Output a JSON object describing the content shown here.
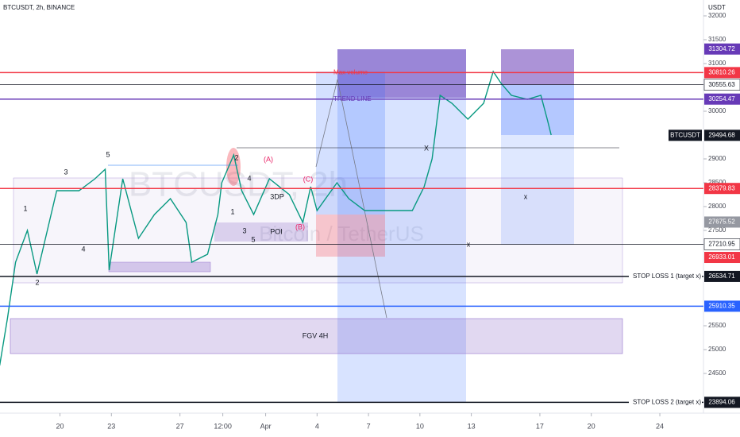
{
  "header": {
    "symbol": "BTCUSDT, 2h, BINANCE",
    "currency": "USDT"
  },
  "watermark": {
    "title": "BTCUSDT, 2h",
    "subtitle": "Bitcoin / TetherUS"
  },
  "chart_data": {
    "type": "line",
    "color": "#089981",
    "x": [
      16.48,
      16.94,
      17.41,
      18.1,
      18.66,
      19.26,
      19.81,
      21.11,
      22.04,
      22.64,
      22.87,
      23.66,
      24.58,
      25.51,
      26.44,
      27.36,
      27.69,
      28.61,
      29.21,
      29.44,
      30.14,
      30.6,
      31.3,
      32.22,
      33.38,
      34.17,
      34.63,
      35.0,
      36.16,
      36.85,
      37.78,
      39.17,
      40.56,
      41.25,
      41.71,
      42.18,
      42.87,
      43.8,
      44.72,
      45.28,
      45.74,
      46.34,
      47.27,
      48.06,
      48.43,
      48.66
    ],
    "values": [
      24667,
      25667,
      26833,
      27500,
      26583,
      27500,
      28333,
      28333,
      28583,
      28783,
      26667,
      28583,
      27333,
      27833,
      28167,
      27667,
      26833,
      27000,
      27833,
      28500,
      29083,
      28333,
      27833,
      28583,
      28250,
      27667,
      28417,
      27917,
      28500,
      28167,
      27917,
      27917,
      27917,
      28417,
      29000,
      30333,
      30167,
      29833,
      30167,
      30833,
      30583,
      30333,
      30250,
      30333,
      29833,
      29500
    ],
    "xlim": [
      16.5,
      57.5
    ],
    "ylim": [
      23417,
      32333
    ],
    "yticks": [
      32000,
      31500,
      31000,
      30000,
      29000,
      28500,
      28000,
      27500,
      25500,
      25000,
      24500
    ],
    "xticks": [
      20,
      23,
      27,
      {
        "value": 29.5,
        "label": "12:00"
      },
      {
        "value": 32,
        "label": "Apr"
      },
      {
        "value": 35,
        "label": "4"
      },
      {
        "value": 38,
        "label": "7"
      },
      {
        "value": 41,
        "label": "10"
      },
      {
        "value": 44,
        "label": "13"
      },
      {
        "value": 48,
        "label": "17"
      },
      {
        "value": 51,
        "label": "20"
      },
      {
        "value": 55,
        "label": "24"
      }
    ]
  },
  "price_tags": [
    {
      "value": 31304.72,
      "color": "#673ab7",
      "text_color": "#ffffff"
    },
    {
      "value": 30810.26,
      "color": "#f23645",
      "text_color": "#ffffff",
      "line": true,
      "label": "Max volume"
    },
    {
      "value": 30555.63,
      "color": "#ffffff",
      "text_color": "#131722",
      "line": true
    },
    {
      "value": 30254.47,
      "color": "#673ab7",
      "text_color": "#ffffff",
      "line": true,
      "label": "TREND LINE"
    },
    {
      "value": 29494.68,
      "color": "#131722",
      "text_color": "#ffffff",
      "name": "BTCUSDT"
    },
    {
      "value": 28379.83,
      "color": "#f23645",
      "text_color": "#ffffff",
      "line": true
    },
    {
      "value": 27675.52,
      "color": "#9598a1",
      "text_color": "#ffffff"
    },
    {
      "value": 27210.95,
      "color": "#ffffff",
      "text_color": "#131722",
      "line": true
    },
    {
      "value": 26933.01,
      "color": "#f23645",
      "text_color": "#ffffff"
    },
    {
      "value": 26534.71,
      "color": "#131722",
      "text_color": "#ffffff",
      "line": true,
      "label": "STOP LOSS 1 (target x)"
    },
    {
      "value": 25910.35,
      "color": "#2962ff",
      "text_color": "#ffffff",
      "line": true
    },
    {
      "value": 23894.06,
      "color": "#131722",
      "text_color": "#ffffff",
      "line": true,
      "label": "STOP LOSS 2 (target x)"
    }
  ],
  "annotations": [
    "1",
    "2",
    "3",
    "4",
    "5",
    "1",
    "2",
    "3",
    "4",
    "5",
    "(A)",
    "(B)",
    "(C)",
    "3DP",
    "POI",
    "FGV 4H",
    "X",
    "x",
    "x"
  ]
}
